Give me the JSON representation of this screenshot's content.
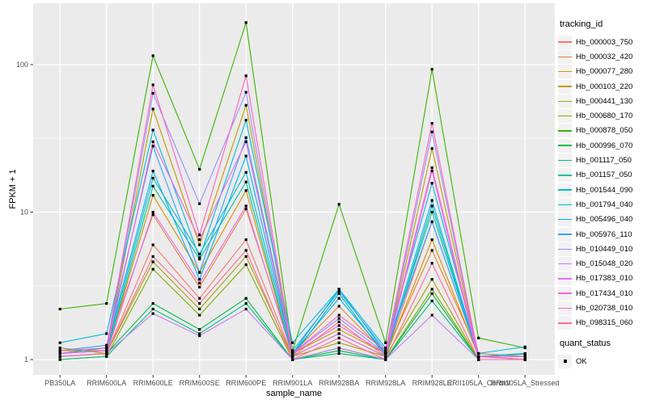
{
  "chart_data": {
    "type": "line",
    "title": "",
    "xlabel": "sample_name",
    "ylabel": "FPKM + 1",
    "yscale": "log10",
    "ylim": [
      0.79,
      260
    ],
    "yticks": [
      1,
      10,
      100
    ],
    "ytick_labels": [
      "1",
      "10",
      "100"
    ],
    "yminor": [
      3.162,
      31.62
    ],
    "grid": true,
    "legend_position": "right",
    "legend_title": "tracking_id",
    "categories": [
      "PB350LA",
      "RRIM600LA",
      "RRIM600LE",
      "RRIM600SE",
      "RRIM600PE",
      "RRIM901LA",
      "RRIM928BA",
      "RRIM928LA",
      "RRIM928LE",
      "RRII105LA_Control",
      "RRII105LA_Stressed"
    ],
    "series": [
      {
        "name": "Hb_000003_750",
        "color": "#F8766D",
        "values": [
          1.05,
          1.1,
          6.0,
          2.6,
          6.5,
          1.05,
          1.8,
          1.05,
          8.6,
          1.05,
          1.0
        ]
      },
      {
        "name": "Hb_000032_420",
        "color": "#EA8331",
        "values": [
          1.1,
          1.2,
          9.6,
          3.1,
          10.5,
          1.1,
          2.3,
          1.1,
          5.5,
          1.1,
          1.05
        ]
      },
      {
        "name": "Hb_000077_280",
        "color": "#D89000",
        "values": [
          1.05,
          1.1,
          13,
          3.9,
          14,
          1.05,
          1.5,
          1.05,
          6.5,
          1.05,
          1.0
        ]
      },
      {
        "name": "Hb_000103_220",
        "color": "#C09B00",
        "values": [
          1.15,
          1.15,
          50,
          6.0,
          53,
          1.1,
          1.6,
          1.1,
          27,
          1.05,
          1.05
        ]
      },
      {
        "name": "Hb_000441_130",
        "color": "#A3A500",
        "values": [
          1.2,
          1.1,
          4.6,
          2.2,
          5.0,
          1.05,
          1.3,
          1.05,
          3.5,
          1.0,
          1.0
        ]
      },
      {
        "name": "Hb_000680_170",
        "color": "#7CAE00",
        "values": [
          1.0,
          1.05,
          4.1,
          2.0,
          4.4,
          1.0,
          1.2,
          1.0,
          3.0,
          1.0,
          1.0
        ]
      },
      {
        "name": "Hb_000878_050",
        "color": "#39B600",
        "values": [
          2.2,
          2.4,
          115,
          19.5,
          193,
          1.15,
          11.3,
          1.3,
          93,
          1.4,
          1.2
        ]
      },
      {
        "name": "Hb_000996_070",
        "color": "#00BB4E",
        "values": [
          1.05,
          1.1,
          2.4,
          1.6,
          2.6,
          1.0,
          1.15,
          1.0,
          2.8,
          1.0,
          1.0
        ]
      },
      {
        "name": "Hb_001117_050",
        "color": "#00BF7D",
        "values": [
          1.0,
          1.05,
          2.2,
          1.5,
          2.4,
          1.0,
          1.1,
          1.0,
          2.5,
          1.0,
          1.0
        ]
      },
      {
        "name": "Hb_001157_050",
        "color": "#00C1A3",
        "values": [
          1.05,
          1.1,
          15,
          4.8,
          16,
          1.05,
          2.8,
          1.05,
          11,
          1.05,
          1.09
        ]
      },
      {
        "name": "Hb_001544_090",
        "color": "#00BFC4",
        "values": [
          1.1,
          1.15,
          17,
          5.2,
          18.6,
          1.1,
          3.0,
          1.1,
          10,
          1.05,
          1.0
        ]
      },
      {
        "name": "Hb_001794_040",
        "color": "#00BAE0",
        "values": [
          1.3,
          1.5,
          36,
          4.9,
          42,
          1.3,
          3.0,
          1.2,
          15.7,
          1.1,
          1.22
        ]
      },
      {
        "name": "Hb_005496_040",
        "color": "#00B0F6",
        "values": [
          1.1,
          1.2,
          19,
          3.5,
          24,
          1.1,
          2.6,
          1.1,
          12,
          1.05,
          1.1
        ]
      },
      {
        "name": "Hb_005976_110",
        "color": "#35A2FF",
        "values": [
          1.15,
          1.25,
          28,
          3.9,
          32,
          1.15,
          2.9,
          1.15,
          8.6,
          1.05,
          1.05
        ]
      },
      {
        "name": "Hb_010449_010",
        "color": "#9590FF",
        "values": [
          1.1,
          1.15,
          64,
          11.4,
          65,
          1.1,
          1.9,
          1.1,
          35,
          1.05,
          1.0
        ]
      },
      {
        "name": "Hb_015048_020",
        "color": "#C77CFF",
        "values": [
          1.05,
          1.1,
          2.05,
          1.45,
          2.2,
          1.0,
          1.2,
          1.0,
          2.0,
          1.0,
          1.0
        ]
      },
      {
        "name": "Hb_017383_010",
        "color": "#E76BF3",
        "values": [
          1.05,
          1.1,
          10,
          3.3,
          11,
          1.05,
          1.5,
          1.05,
          19,
          1.0,
          1.0
        ]
      },
      {
        "name": "Hb_017434_010",
        "color": "#FA62DB",
        "values": [
          1.1,
          1.15,
          30,
          6.5,
          30,
          1.1,
          1.7,
          1.1,
          20,
          1.05,
          1.0
        ]
      },
      {
        "name": "Hb_020738_010",
        "color": "#FF62BC",
        "values": [
          1.15,
          1.2,
          73,
          7.0,
          84,
          1.1,
          2.0,
          1.15,
          40,
          1.05,
          1.05
        ]
      },
      {
        "name": "Hb_098315_060",
        "color": "#FF6A98",
        "values": [
          1.05,
          1.1,
          5.0,
          2.4,
          5.5,
          1.0,
          1.4,
          1.0,
          4.5,
          1.0,
          1.0
        ]
      }
    ],
    "quant_legend": {
      "title": "quant_status",
      "items": [
        {
          "label": "OK",
          "marker": "black-square"
        }
      ]
    }
  },
  "colors": {
    "panel_bg": "#EBEBEB",
    "grid_major": "#FFFFFF",
    "grid_minor": "#F5F5F5",
    "tick_text": "#4D4D4D",
    "tick_mark": "#333333",
    "point": "#000000",
    "legend_key_bg": "#F2F2F2"
  }
}
